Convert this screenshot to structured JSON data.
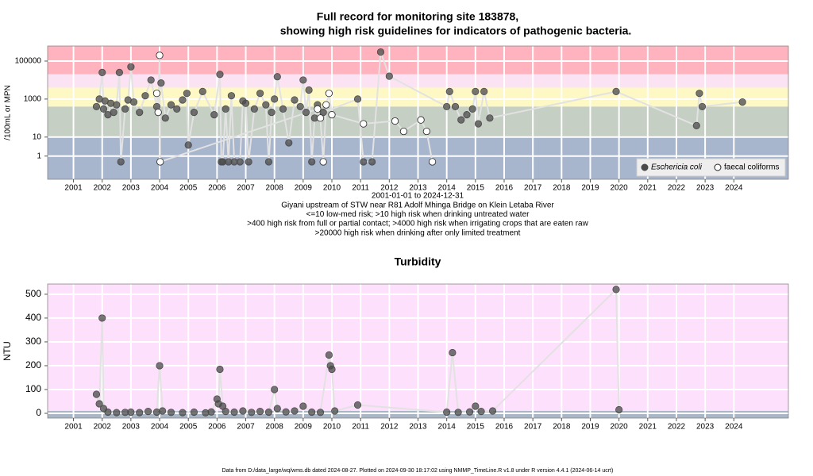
{
  "chart_data": [
    {
      "type": "scatter",
      "title": [
        "Full record for monitoring site 183878,",
        "showing high risk guidelines for indicators of pathogenic bacteria."
      ],
      "ylabel": "/100mL or MPN",
      "caption": [
        "2001-01-01 to 2024-12-31",
        "Giyani upstream of STW near R81 Adolf Mhinga Bridge on Klein Letaba River",
        "<=10 low-med risk; >10 high risk when drinking untreated water",
        ">400 high risk from full or partial contact; >4000 high risk when irrigating crops that are eaten raw",
        ">20000 high risk when drinking after only limited treatment"
      ],
      "log_y": true,
      "grid": true,
      "legend": "lower right",
      "xlim": [
        2000.1,
        2025.9
      ],
      "xticks": [
        2001,
        2002,
        2003,
        2004,
        2005,
        2006,
        2007,
        2008,
        2009,
        2010,
        2011,
        2012,
        2013,
        2014,
        2015,
        2016,
        2017,
        2018,
        2019,
        2020,
        2021,
        2022,
        2023,
        2024
      ],
      "ylim": [
        0.06,
        620000
      ],
      "yticks": [
        1,
        10,
        1000,
        100000
      ],
      "bands": [
        {
          "from": 20000,
          "to": 620000,
          "color": "#ffb3bf"
        },
        {
          "from": 4000,
          "to": 20000,
          "color": "#fce3f3"
        },
        {
          "from": 400,
          "to": 4000,
          "color": "#fdf8c4"
        },
        {
          "from": 10,
          "to": 400,
          "color": "#c5cfc4"
        },
        {
          "from": 0.06,
          "to": 10,
          "color": "#a7b5cd"
        }
      ],
      "series": [
        {
          "name": "Eschericia coli",
          "color": "#4a4a4a",
          "edgecolor": "#4a4a4a",
          "x": [
            2001.8,
            2001.9,
            2002.0,
            2002.05,
            2002.1,
            2002.2,
            2002.3,
            2002.4,
            2002.5,
            2002.6,
            2002.65,
            2002.8,
            2002.9,
            2003.0,
            2003.1,
            2003.3,
            2003.5,
            2003.7,
            2003.9,
            2004.05,
            2004.2,
            2004.4,
            2004.6,
            2004.8,
            2004.95,
            2005.0,
            2005.2,
            2005.5,
            2005.9,
            2006.1,
            2006.15,
            2006.2,
            2006.3,
            2006.4,
            2006.5,
            2006.6,
            2006.8,
            2006.9,
            2007.0,
            2007.1,
            2007.3,
            2007.5,
            2007.7,
            2007.8,
            2007.9,
            2008.0,
            2008.1,
            2008.3,
            2008.5,
            2008.7,
            2008.9,
            2009.0,
            2009.1,
            2009.2,
            2009.3,
            2009.4,
            2009.5,
            2009.7,
            2010.9,
            2011.1,
            2011.4,
            2011.7,
            2012.0,
            2014.0,
            2014.1,
            2014.3,
            2014.5,
            2014.7,
            2014.9,
            2015.0,
            2015.1,
            2015.3,
            2015.5,
            2019.9,
            2022.7,
            2022.8,
            2022.9,
            2024.3
          ],
          "values": [
            400,
            1000,
            25000,
            300,
            800,
            150,
            600,
            200,
            500,
            25000,
            0.5,
            300,
            900,
            50000,
            700,
            200,
            1500,
            10000,
            400,
            7000,
            100,
            500,
            300,
            900,
            2000,
            3.8,
            200,
            2500,
            150,
            20000,
            0.5,
            0.5,
            300,
            0.5,
            1500,
            0.5,
            0.5,
            800,
            600,
            0.5,
            300,
            2000,
            500,
            0.5,
            200,
            1000,
            15000,
            300,
            5,
            900,
            400,
            10000,
            200,
            3000,
            0.5,
            100,
            500,
            200,
            1000,
            0.5,
            0.5,
            300000,
            16000,
            400,
            2500,
            400,
            80,
            150,
            300,
            2500,
            50,
            2500,
            100,
            2500,
            40,
            2000,
            400,
            700
          ]
        },
        {
          "name": "faecal coliforms",
          "color": "#ffffff",
          "edgecolor": "#222222",
          "x": [
            2003.9,
            2003.95,
            2004.0,
            2004.02,
            2009.5,
            2009.6,
            2009.7,
            2009.8,
            2009.9,
            2010.0,
            2011.1,
            2012.2,
            2012.5,
            2013.1,
            2013.3,
            2013.5
          ],
          "values": [
            2000,
            200,
            200000,
            0.5,
            300,
            100,
            0.5,
            500,
            2000,
            150,
            50,
            70,
            20,
            80,
            20,
            0.5
          ]
        }
      ]
    },
    {
      "type": "scatter",
      "title": [
        "Turbidity"
      ],
      "ylabel": "NTU",
      "log_y": false,
      "grid": true,
      "xlim": [
        2000.1,
        2025.9
      ],
      "xticks": [
        2001,
        2002,
        2003,
        2004,
        2005,
        2006,
        2007,
        2008,
        2009,
        2010,
        2011,
        2012,
        2013,
        2014,
        2015,
        2016,
        2017,
        2018,
        2019,
        2020,
        2021,
        2022,
        2023,
        2024
      ],
      "ylim": [
        -20,
        543
      ],
      "yticks": [
        0,
        100,
        200,
        300,
        400,
        500
      ],
      "bands": [
        {
          "from": 10,
          "to": 543,
          "color": "#fde0fb"
        },
        {
          "from": -20,
          "to": 10,
          "color": "#a9b6c6"
        }
      ],
      "series": [
        {
          "name": "Turbidity",
          "color": "#4a4a4a",
          "edgecolor": "#4a4a4a",
          "x": [
            2001.8,
            2001.9,
            2002.0,
            2002.05,
            2002.2,
            2002.5,
            2002.8,
            2003.0,
            2003.3,
            2003.6,
            2003.9,
            2004.0,
            2004.1,
            2004.4,
            2004.8,
            2005.2,
            2005.6,
            2005.8,
            2006.0,
            2006.05,
            2006.1,
            2006.2,
            2006.3,
            2006.6,
            2006.9,
            2007.2,
            2007.5,
            2007.8,
            2008.0,
            2008.1,
            2008.4,
            2008.7,
            2009.0,
            2009.3,
            2009.6,
            2009.9,
            2009.95,
            2010.0,
            2010.1,
            2010.9,
            2014.0,
            2014.2,
            2014.4,
            2014.8,
            2015.0,
            2015.2,
            2015.6,
            2019.9,
            2020.0
          ],
          "values": [
            80,
            40,
            400,
            20,
            5,
            3,
            4,
            5,
            3,
            8,
            5,
            200,
            10,
            4,
            3,
            5,
            2,
            6,
            60,
            40,
            185,
            30,
            8,
            5,
            10,
            4,
            8,
            5,
            100,
            20,
            6,
            10,
            30,
            5,
            4,
            245,
            200,
            185,
            10,
            35,
            5,
            255,
            4,
            6,
            30,
            8,
            10,
            520,
            15
          ]
        }
      ]
    }
  ],
  "footer": "Data from D:/data_large/wq/wms.db dated 2024-08-27. Plotted on 2024-09-30 18:17:02 using NMMP_TimeLine.R v1.8 under R version 4.4.1 (2024-06-14 ucrt)"
}
